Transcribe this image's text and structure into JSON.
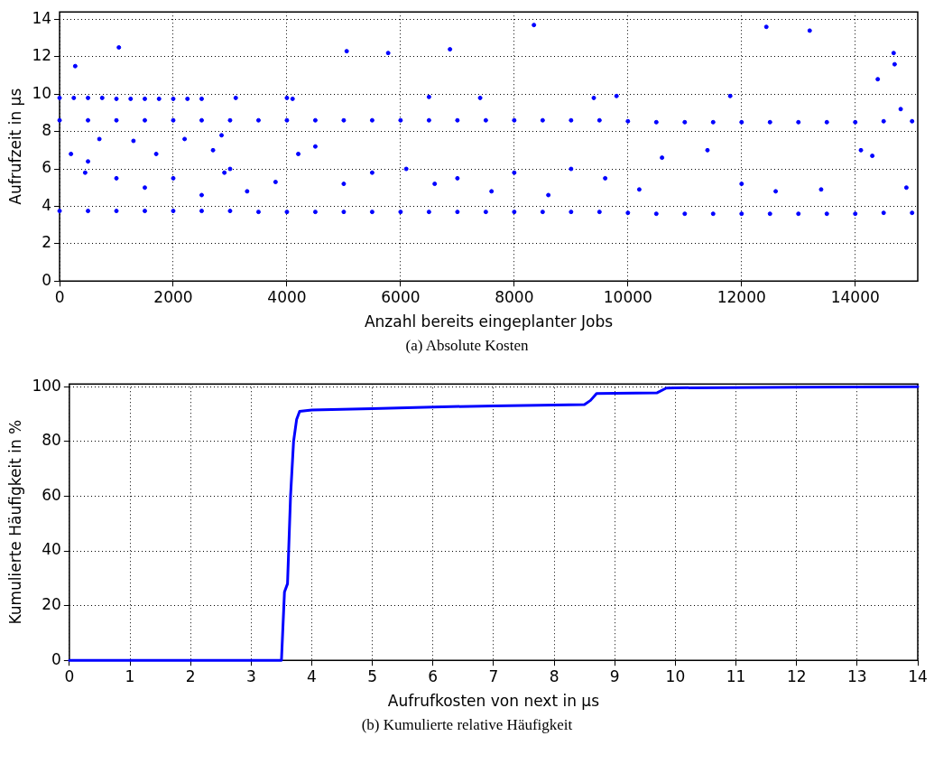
{
  "chart_data": [
    {
      "type": "scatter",
      "xlabel": "Anzahl bereits eingeplanter Jobs",
      "ylabel": "Aufrufzeit in µs",
      "annotations": [
        "(a) Absolute Kosten"
      ],
      "xlim": [
        0,
        15100
      ],
      "ylim": [
        0,
        14.4
      ],
      "xticks": [
        0,
        2000,
        4000,
        6000,
        8000,
        10000,
        12000,
        14000
      ],
      "yticks": [
        0,
        2,
        4,
        6,
        8,
        10,
        12,
        14
      ],
      "grid": true,
      "marker": "circle",
      "series": [
        {
          "color": "#0000ff",
          "x": [
            0,
            500,
            1000,
            1500,
            2000,
            2500,
            3000,
            3500,
            4000,
            4500,
            5000,
            5500,
            6000,
            6500,
            7000,
            7500,
            8000,
            8500,
            9000,
            9500,
            10000,
            10500,
            11000,
            11500,
            12000,
            12500,
            13000,
            13500,
            14000,
            14500,
            15000,
            0,
            500,
            1000,
            1500,
            2000,
            2500,
            3000,
            3500,
            4000,
            4500,
            5000,
            5500,
            6000,
            6500,
            7000,
            7500,
            8000,
            8500,
            9000,
            9500,
            10000,
            10500,
            11000,
            11500,
            12000,
            12500,
            13000,
            13500,
            14000,
            14500,
            15000,
            0,
            250,
            500,
            750,
            1000,
            1250,
            1500,
            1750,
            2000,
            2250,
            2500,
            275,
            1043,
            5052,
            5782,
            6869,
            8346,
            12436,
            13199,
            14676,
            14693,
            14396,
            200,
            450,
            500,
            700,
            1000,
            1300,
            1500,
            1700,
            2000,
            2200,
            2500,
            2700,
            2850,
            2900,
            3000,
            3300,
            3800,
            4200,
            4500,
            5000,
            5500,
            6100,
            6600,
            7000,
            7600,
            8000,
            8600,
            9000,
            9400,
            9600,
            10200,
            10600,
            11400,
            11800,
            12000,
            12600,
            13400,
            14100,
            14300,
            14800,
            14900,
            9800,
            3100,
            4000,
            4100,
            6500,
            7400
          ],
          "values": [
            3.75,
            3.75,
            3.75,
            3.75,
            3.75,
            3.75,
            3.75,
            3.7,
            3.7,
            3.7,
            3.7,
            3.7,
            3.7,
            3.7,
            3.7,
            3.7,
            3.7,
            3.7,
            3.7,
            3.7,
            3.65,
            3.6,
            3.6,
            3.6,
            3.6,
            3.6,
            3.6,
            3.6,
            3.6,
            3.65,
            3.65,
            8.6,
            8.6,
            8.6,
            8.6,
            8.6,
            8.6,
            8.6,
            8.6,
            8.6,
            8.6,
            8.6,
            8.6,
            8.6,
            8.6,
            8.6,
            8.6,
            8.6,
            8.6,
            8.6,
            8.6,
            8.55,
            8.5,
            8.5,
            8.5,
            8.5,
            8.5,
            8.5,
            8.5,
            8.5,
            8.55,
            8.55,
            9.8,
            9.8,
            9.8,
            9.8,
            9.75,
            9.75,
            9.75,
            9.75,
            9.75,
            9.75,
            9.75,
            11.5,
            12.5,
            12.3,
            12.2,
            12.4,
            13.7,
            13.6,
            13.4,
            12.2,
            11.6,
            10.8,
            6.8,
            5.8,
            6.4,
            7.6,
            5.5,
            7.5,
            5.0,
            6.8,
            5.5,
            7.6,
            4.6,
            7.0,
            7.8,
            5.8,
            6.0,
            4.8,
            5.3,
            6.8,
            7.2,
            5.2,
            5.8,
            6.0,
            5.2,
            5.5,
            4.8,
            5.8,
            4.6,
            6.0,
            9.8,
            5.5,
            4.9,
            6.6,
            7.0,
            9.9,
            5.2,
            4.8,
            4.9,
            7.0,
            6.7,
            9.2,
            5.0,
            9.9,
            9.8,
            9.8,
            9.75,
            9.85,
            9.8
          ]
        }
      ]
    },
    {
      "type": "line",
      "xlabel": "Aufrufkosten von next in µs",
      "ylabel": "Kumulierte Häufigkeit in %",
      "annotations": [
        "(b) Kumulierte relative Häufigkeit"
      ],
      "xlim": [
        0,
        14
      ],
      "ylim": [
        0,
        101
      ],
      "xticks": [
        0,
        1,
        2,
        3,
        4,
        5,
        6,
        7,
        8,
        9,
        10,
        11,
        12,
        13,
        14
      ],
      "yticks": [
        0,
        20,
        40,
        60,
        80,
        100
      ],
      "grid": true,
      "line_style": "solid",
      "series": [
        {
          "color": "#0000ff",
          "x": [
            0,
            3.5,
            3.55,
            3.6,
            3.65,
            3.7,
            3.75,
            3.8,
            4,
            5,
            6,
            7,
            8,
            8.5,
            8.6,
            8.7,
            9,
            9.7,
            9.85,
            10,
            12,
            14
          ],
          "values": [
            0,
            0,
            25,
            28,
            60,
            80,
            88,
            91,
            91.5,
            92,
            92.6,
            93,
            93.3,
            93.5,
            95,
            97.5,
            97.6,
            97.8,
            99.5,
            99.6,
            99.8,
            100
          ]
        }
      ]
    }
  ]
}
